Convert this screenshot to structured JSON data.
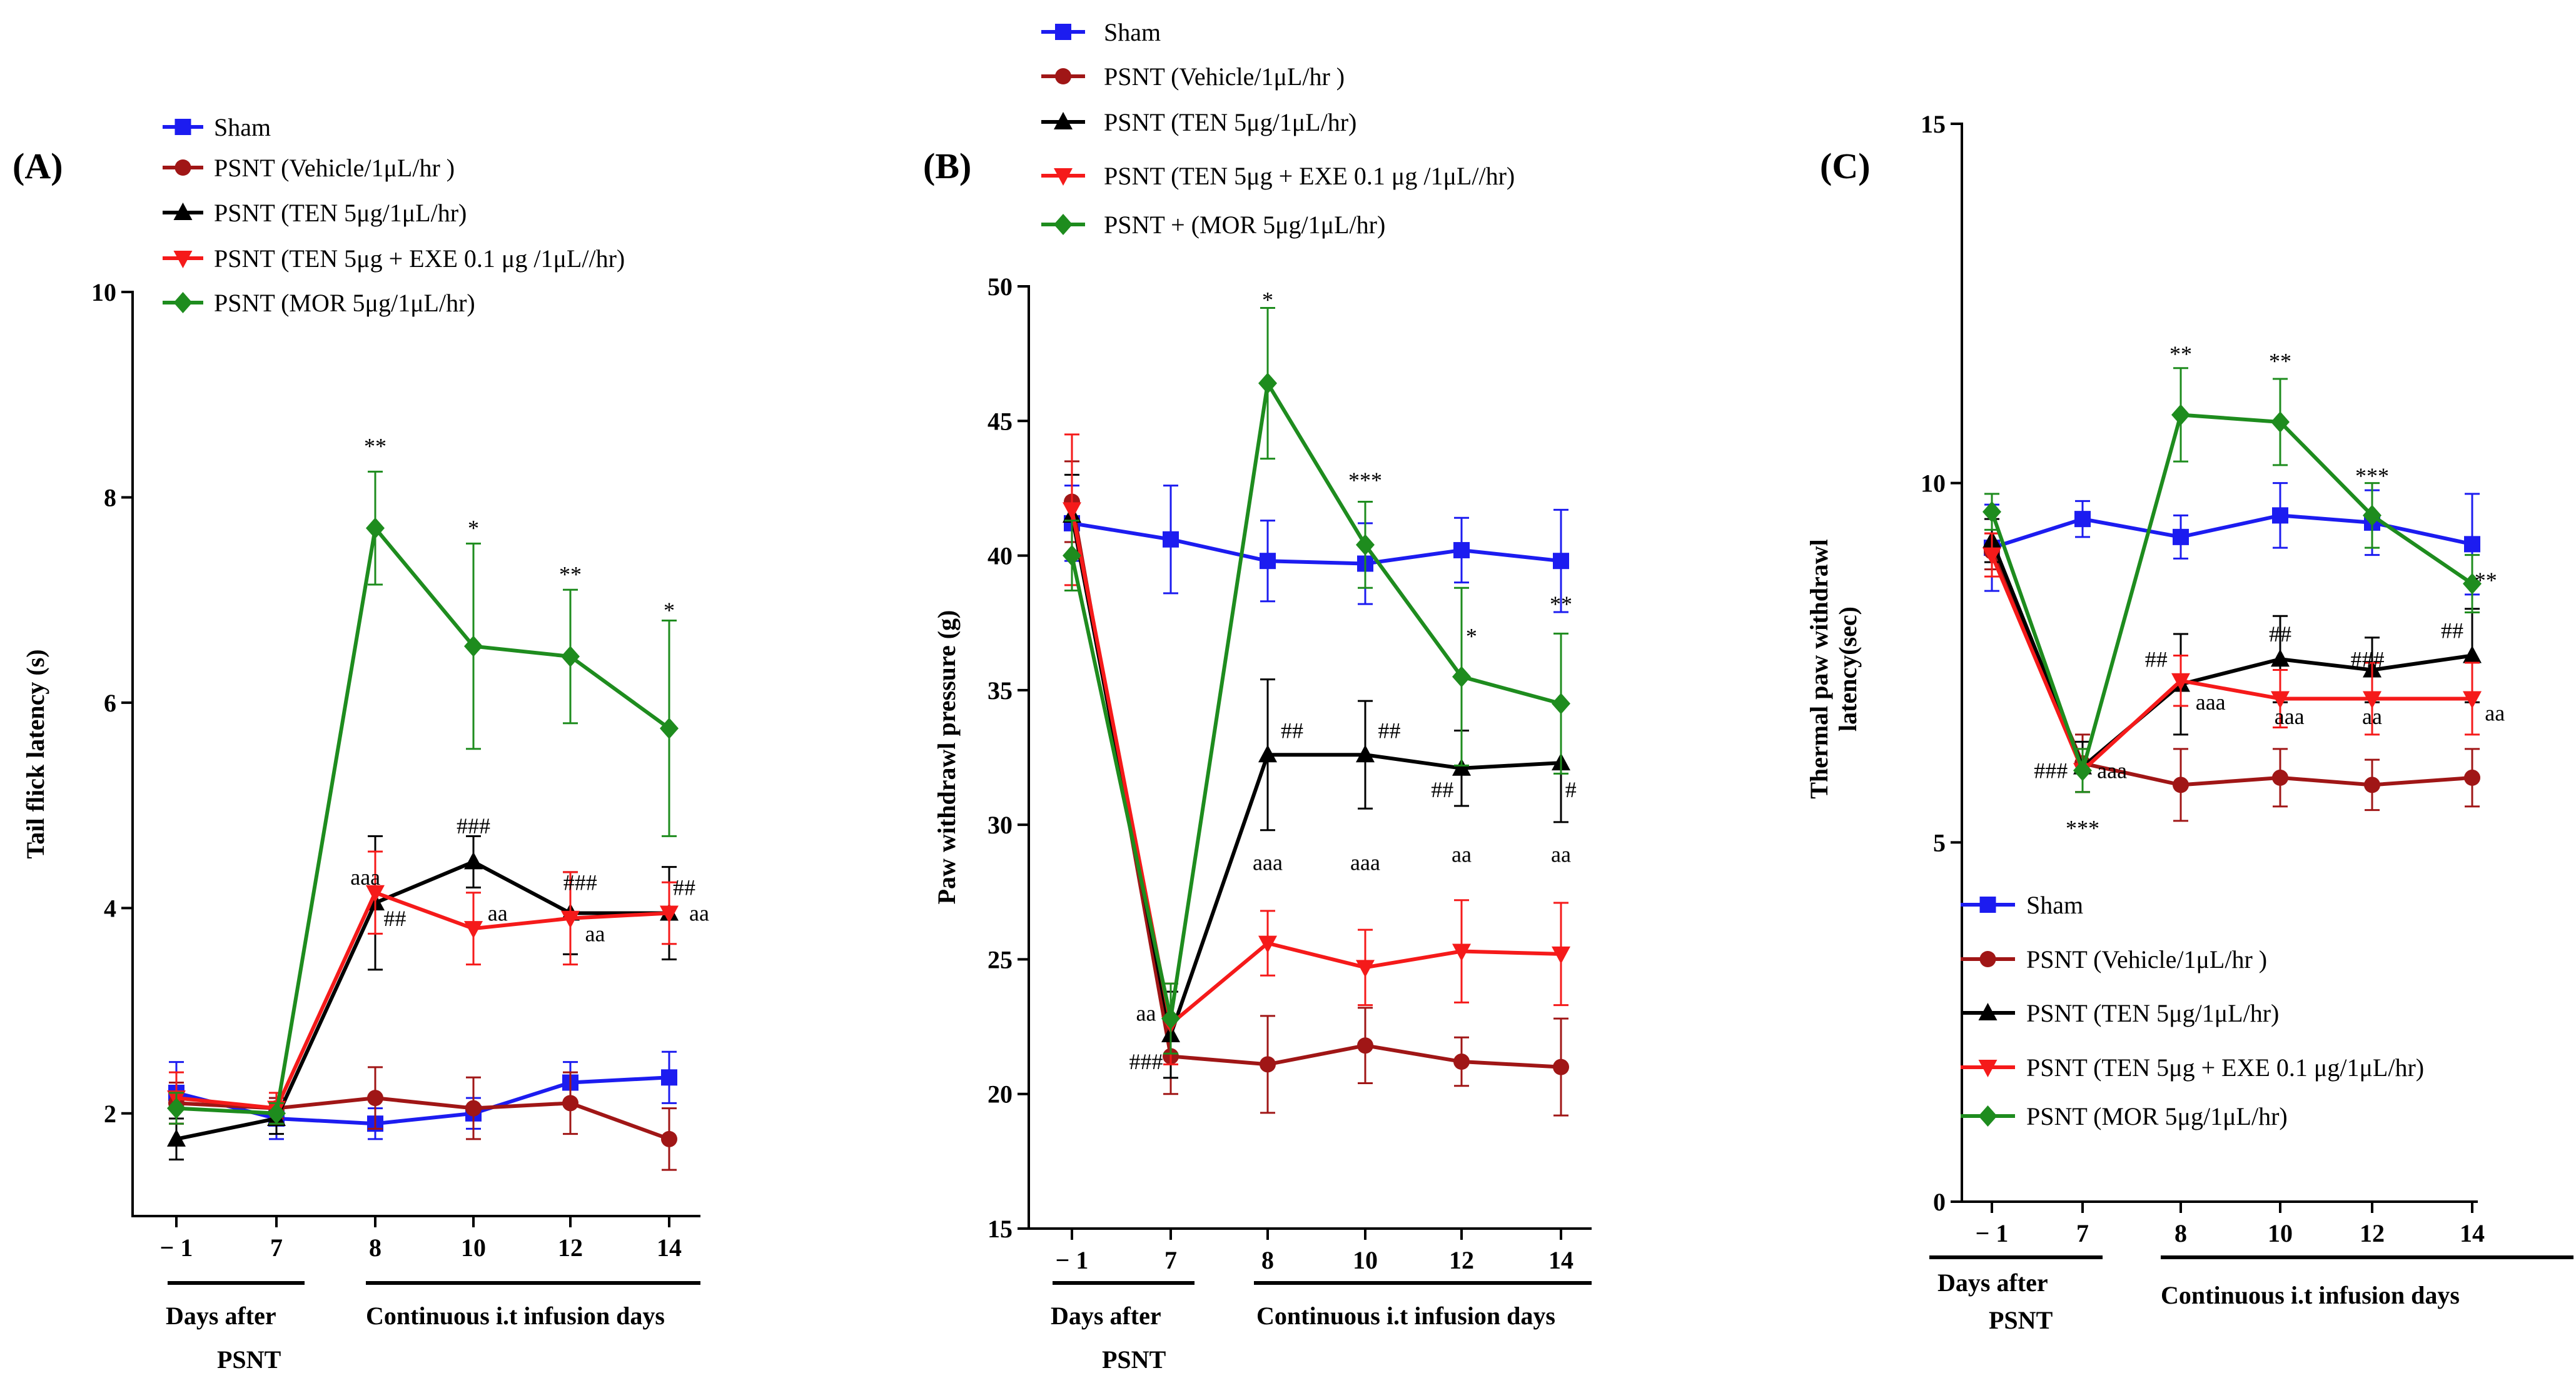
{
  "figure": {
    "colors": {
      "sham": "#1c1cf0",
      "vehicle": "#a01616",
      "ten": "#000000",
      "ten_exe": "#f51a1a",
      "mor": "#1e8c1e"
    }
  },
  "chart_data": [
    {
      "panel": "(A)",
      "type": "line",
      "ylabel": "Tail  flick latency (s)",
      "ylim": [
        1,
        10
      ],
      "yticks": [
        2,
        4,
        6,
        8,
        10
      ],
      "categories": [
        "− 1",
        "7",
        "8",
        "10",
        "12",
        "14"
      ],
      "x_groups": [
        "Days after PSNT",
        "Continuous i.t infusion days"
      ],
      "legend": [
        "Sham",
        "PSNT (Vehicle/1μL/hr )",
        "PSNT (TEN 5μg/1μL/hr)",
        "PSNT (TEN  5μg + EXE 0.1 μg /1μL//hr)",
        "PSNT (MOR 5μg/1μL/hr)"
      ],
      "series": [
        {
          "name": "Sham",
          "key": "sham",
          "marker": "square",
          "values": [
            2.2,
            1.95,
            1.9,
            2.0,
            2.3,
            2.35
          ],
          "errors": [
            0.3,
            0.2,
            0.15,
            0.15,
            0.2,
            0.25
          ]
        },
        {
          "name": "PSNT (Vehicle/1μL/hr )",
          "key": "vehicle",
          "marker": "circle",
          "values": [
            2.1,
            2.05,
            2.15,
            2.05,
            2.1,
            1.75
          ],
          "errors": [
            0.2,
            0.1,
            0.3,
            0.3,
            0.3,
            0.3
          ]
        },
        {
          "name": "PSNT (TEN 5μg/1μL/hr)",
          "key": "ten",
          "marker": "triangle-up",
          "values": [
            1.75,
            1.95,
            4.05,
            4.45,
            3.95,
            3.95
          ],
          "errors": [
            0.2,
            0.15,
            0.65,
            0.25,
            0.4,
            0.45
          ]
        },
        {
          "name": "PSNT (TEN  5μg + EXE 0.1 μg /1μL//hr)",
          "key": "ten_exe",
          "marker": "triangle-down",
          "values": [
            2.15,
            2.05,
            4.15,
            3.8,
            3.9,
            3.95
          ],
          "errors": [
            0.25,
            0.15,
            0.4,
            0.35,
            0.45,
            0.3
          ]
        },
        {
          "name": "PSNT (MOR 5μg/1μL/hr)",
          "key": "mor",
          "marker": "diamond",
          "values": [
            2.05,
            2.0,
            7.7,
            6.55,
            6.45,
            5.75
          ],
          "errors": [
            0.15,
            0.1,
            0.55,
            1.0,
            0.65,
            1.05
          ]
        }
      ],
      "annotations": [
        {
          "text": "**",
          "x": 2,
          "y": 8.5
        },
        {
          "text": "*",
          "x": 3,
          "y": 7.7
        },
        {
          "text": "**",
          "x": 4,
          "y": 7.25
        },
        {
          "text": "*",
          "x": 5,
          "y": 6.9
        },
        {
          "text": "###",
          "x": 3,
          "y": 4.8
        },
        {
          "text": "aaa",
          "x": 1.9,
          "y": 4.3
        },
        {
          "text": "##",
          "x": 2.2,
          "y": 3.9
        },
        {
          "text": "aa",
          "x": 3.25,
          "y": 3.95
        },
        {
          "text": "###",
          "x": 4.1,
          "y": 4.25
        },
        {
          "text": "aa",
          "x": 4.25,
          "y": 3.75
        },
        {
          "text": "##",
          "x": 5.15,
          "y": 4.2
        },
        {
          "text": "aa",
          "x": 5.3,
          "y": 3.95
        }
      ]
    },
    {
      "panel": "(B)",
      "type": "line",
      "ylabel": "Paw withdrawl pressure (g)",
      "ylim": [
        15,
        50
      ],
      "yticks": [
        15,
        20,
        25,
        30,
        35,
        40,
        45,
        50
      ],
      "categories": [
        "− 1",
        "7",
        "8",
        "10",
        "12",
        "14"
      ],
      "x_groups": [
        "Days after PSNT",
        "Continuous i.t infusion days"
      ],
      "legend": [
        "Sham",
        "PSNT (Vehicle/1μL/hr )",
        "PSNT (TEN 5μg/1μL/hr)",
        "PSNT (TEN  5μg + EXE 0.1 μg /1μL//hr)",
        "PSNT + (MOR  5μg/1μL/hr)"
      ],
      "series": [
        {
          "name": "Sham",
          "key": "sham",
          "marker": "square",
          "values": [
            41.2,
            40.6,
            39.8,
            39.7,
            40.2,
            39.8
          ],
          "errors": [
            1.4,
            2.0,
            1.5,
            1.5,
            1.2,
            1.9
          ]
        },
        {
          "name": "PSNT (Vehicle/1μL/hr )",
          "key": "vehicle",
          "marker": "circle",
          "values": [
            42.0,
            21.4,
            21.1,
            21.8,
            21.2,
            21.0
          ],
          "errors": [
            1.5,
            1.4,
            1.8,
            1.4,
            0.9,
            1.8
          ]
        },
        {
          "name": "PSNT (TEN 5μg/1μL/hr)",
          "key": "ten",
          "marker": "triangle-up",
          "values": [
            41.5,
            22.2,
            32.6,
            32.6,
            32.1,
            32.3
          ],
          "errors": [
            1.5,
            1.6,
            2.8,
            2.0,
            1.4,
            2.2
          ]
        },
        {
          "name": "PSNT (TEN  5μg + EXE 0.1 μg /1μL//hr)",
          "key": "ten_exe",
          "marker": "triangle-down",
          "values": [
            41.7,
            22.6,
            25.6,
            24.7,
            25.3,
            25.2
          ],
          "errors": [
            2.8,
            1.5,
            1.2,
            1.4,
            1.9,
            1.9
          ]
        },
        {
          "name": "PSNT + (MOR  5μg/1μL/hr)",
          "key": "mor",
          "marker": "diamond",
          "values": [
            40.0,
            22.8,
            46.4,
            40.4,
            35.5,
            34.5
          ],
          "errors": [
            1.3,
            1.3,
            2.8,
            1.6,
            3.3,
            2.6
          ]
        }
      ],
      "annotations": [
        {
          "text": "*",
          "x": 2,
          "y": 49.5
        },
        {
          "text": "***",
          "x": 3,
          "y": 42.8
        },
        {
          "text": "*",
          "x": 4.1,
          "y": 37.0
        },
        {
          "text": "**",
          "x": 5,
          "y": 38.2
        },
        {
          "text": "##",
          "x": 2.25,
          "y": 33.5
        },
        {
          "text": "##",
          "x": 3.25,
          "y": 33.5
        },
        {
          "text": "##",
          "x": 3.8,
          "y": 31.3
        },
        {
          "text": "#",
          "x": 5.1,
          "y": 31.3
        },
        {
          "text": "aaa",
          "x": 2,
          "y": 28.6
        },
        {
          "text": "aaa",
          "x": 3,
          "y": 28.6
        },
        {
          "text": "aa",
          "x": 4,
          "y": 28.9
        },
        {
          "text": "aa",
          "x": 5,
          "y": 28.9
        },
        {
          "text": "aa",
          "x": 0.75,
          "y": 23.0
        },
        {
          "text": "###",
          "x": 0.75,
          "y": 21.2
        }
      ]
    },
    {
      "panel": "(C)",
      "type": "line",
      "ylabel": "Thermal paw withdrawl latency(sec)",
      "ylim": [
        0,
        15
      ],
      "yticks": [
        0,
        5,
        10,
        15
      ],
      "categories": [
        "− 1",
        "7",
        "8",
        "10",
        "12",
        "14"
      ],
      "x_groups": [
        "Days after PSNT",
        "Continuous i.t infusion days"
      ],
      "legend": [
        "Sham",
        "PSNT (Vehicle/1μL/hr )",
        "PSNT (TEN 5μg/1μL/hr)",
        "PSNT (TEN 5μg + EXE 0.1 μg/1μL/hr)",
        "PSNT (MOR 5μg/1μL/hr)"
      ],
      "series": [
        {
          "name": "Sham",
          "key": "sham",
          "marker": "square",
          "values": [
            9.1,
            9.5,
            9.25,
            9.55,
            9.45,
            9.15
          ],
          "errors": [
            0.6,
            0.25,
            0.3,
            0.45,
            0.45,
            0.7
          ]
        },
        {
          "name": "PSNT (Vehicle/1μL/hr )",
          "key": "vehicle",
          "marker": "circle",
          "values": [
            9.05,
            6.1,
            5.8,
            5.9,
            5.8,
            5.9
          ],
          "errors": [
            0.25,
            0.4,
            0.5,
            0.4,
            0.35,
            0.4
          ]
        },
        {
          "name": "PSNT (TEN 5μg/1μL/hr)",
          "key": "ten",
          "marker": "triangle-up",
          "values": [
            9.2,
            6.05,
            7.2,
            7.55,
            7.4,
            7.6
          ],
          "errors": [
            0.3,
            0.35,
            0.7,
            0.6,
            0.45,
            0.65
          ]
        },
        {
          "name": "PSNT (TEN 5μg + EXE 0.1 μg/1μL/hr)",
          "key": "ten_exe",
          "marker": "triangle-down",
          "values": [
            9.0,
            6.0,
            7.25,
            7.0,
            7.0,
            7.0
          ],
          "errors": [
            0.3,
            0.3,
            0.35,
            0.4,
            0.5,
            0.5
          ]
        },
        {
          "name": "PSNT (MOR 5μg/1μL/hr)",
          "key": "mor",
          "marker": "diamond",
          "values": [
            9.6,
            6.0,
            10.95,
            10.85,
            9.55,
            8.6
          ],
          "errors": [
            0.25,
            0.3,
            0.65,
            0.6,
            0.45,
            0.4
          ]
        }
      ],
      "annotations": [
        {
          "text": "**",
          "x": 2,
          "y": 11.8
        },
        {
          "text": "**",
          "x": 3,
          "y": 11.7
        },
        {
          "text": "***",
          "x": 4,
          "y": 10.1
        },
        {
          "text": "**",
          "x": 5.15,
          "y": 8.65
        },
        {
          "text": "##",
          "x": 1.75,
          "y": 7.55
        },
        {
          "text": "aaa",
          "x": 2.3,
          "y": 6.95
        },
        {
          "text": "##",
          "x": 3,
          "y": 7.9
        },
        {
          "text": "aaa",
          "x": 3.1,
          "y": 6.75
        },
        {
          "text": "###",
          "x": 3.95,
          "y": 7.55
        },
        {
          "text": "aa",
          "x": 4,
          "y": 6.75
        },
        {
          "text": "##",
          "x": 4.8,
          "y": 7.95
        },
        {
          "text": "aa",
          "x": 5.25,
          "y": 6.8
        },
        {
          "text": "###",
          "x": 0.65,
          "y": 6.0
        },
        {
          "text": "aaa",
          "x": 1.3,
          "y": 6.0
        },
        {
          "text": "***",
          "x": 1,
          "y": 5.2
        }
      ]
    }
  ]
}
